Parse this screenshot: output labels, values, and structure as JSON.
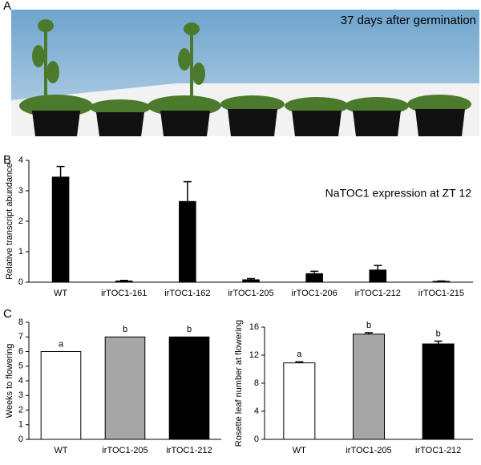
{
  "panel_labels": [
    "A",
    "B",
    "C"
  ],
  "photo": {
    "caption": "37 days after germination"
  },
  "chart_data": [
    {
      "type": "bar",
      "title": "NaTOC1 expression at ZT 12",
      "y_label": "Relative transcript abundance",
      "categories": [
        "WT",
        "irTOC1-161",
        "irTOC1-162",
        "irTOC1-205",
        "irTOC1-206",
        "irTOC1-212",
        "irTOC1-215"
      ],
      "values": [
        3.45,
        0.04,
        2.65,
        0.08,
        0.28,
        0.4,
        0.03
      ],
      "errors": [
        0.35,
        0.02,
        0.65,
        0.04,
        0.08,
        0.15,
        0.01
      ],
      "colors": [
        "#000000",
        "#000000",
        "#000000",
        "#000000",
        "#000000",
        "#000000",
        "#000000"
      ],
      "ylim": [
        0,
        4
      ],
      "yticks": [
        0,
        1,
        2,
        3,
        4
      ]
    },
    {
      "type": "bar",
      "y_label": "Weeks to flowering",
      "categories": [
        "WT",
        "irTOC1-205",
        "irTOC1-212"
      ],
      "values": [
        6,
        7,
        7
      ],
      "colors": [
        "#ffffff",
        "#a6a6a6",
        "#000000"
      ],
      "annotations": [
        "a",
        "b",
        "b"
      ],
      "ylim": [
        0,
        8
      ],
      "yticks": [
        0,
        1,
        2,
        3,
        4,
        5,
        6,
        7,
        8
      ]
    },
    {
      "type": "bar",
      "y_label": "Rosette leaf number at flowering",
      "categories": [
        "WT",
        "irTOC1-205",
        "irTOC1-212"
      ],
      "values": [
        10.9,
        15.0,
        13.6
      ],
      "errors": [
        0.15,
        0.2,
        0.4
      ],
      "colors": [
        "#ffffff",
        "#a6a6a6",
        "#000000"
      ],
      "annotations": [
        "a",
        "b",
        "b"
      ],
      "ylim": [
        0,
        16
      ],
      "yticks": [
        0,
        4,
        8,
        12,
        16
      ]
    }
  ]
}
